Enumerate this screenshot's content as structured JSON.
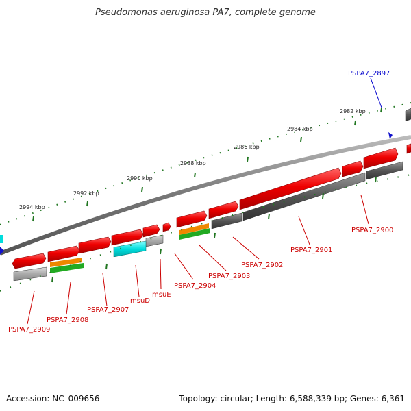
{
  "title": "Pseudomonas aeruginosa PA7, complete genome",
  "footer": {
    "accession": "Accession: NC_009656",
    "summary": "Topology: circular; Length: 6,588,339 bp; Genes: 6,361"
  },
  "scale_labels": [
    {
      "text": "2982 kbp",
      "pos": 2982
    },
    {
      "text": "2984 kbp",
      "pos": 2984
    },
    {
      "text": "2986 kbp",
      "pos": 2986
    },
    {
      "text": "2988 kbp",
      "pos": 2988
    },
    {
      "text": "2990 kbp",
      "pos": 2990
    },
    {
      "text": "2992 kbp",
      "pos": 2992
    },
    {
      "text": "2994 kbp",
      "pos": 2994
    }
  ],
  "gene_labels": [
    {
      "text": "PSPA7_2897",
      "color": "#0000cc"
    },
    {
      "text": "PSPA7_2900",
      "color": "#cc0000"
    },
    {
      "text": "PSPA7_2901",
      "color": "#cc0000"
    },
    {
      "text": "PSPA7_2902",
      "color": "#cc0000"
    },
    {
      "text": "PSPA7_2903",
      "color": "#cc0000"
    },
    {
      "text": "PSPA7_2904",
      "color": "#cc0000"
    },
    {
      "text": "msuE",
      "color": "#cc0000"
    },
    {
      "text": "msuD",
      "color": "#cc0000"
    },
    {
      "text": "PSPA7_2907",
      "color": "#cc0000"
    },
    {
      "text": "PSPA7_2908",
      "color": "#cc0000"
    },
    {
      "text": "PSPA7_2909",
      "color": "#cc0000"
    }
  ],
  "colors": {
    "cds": "#ee0000",
    "gene": "#555555",
    "gene_light": "#aaaaaa",
    "rna_cyan": "#00dddd",
    "orange": "#ee8800",
    "green": "#22aa22",
    "tick": "#227722",
    "backbone": "#777777",
    "blue_feature": "#1111cc"
  }
}
